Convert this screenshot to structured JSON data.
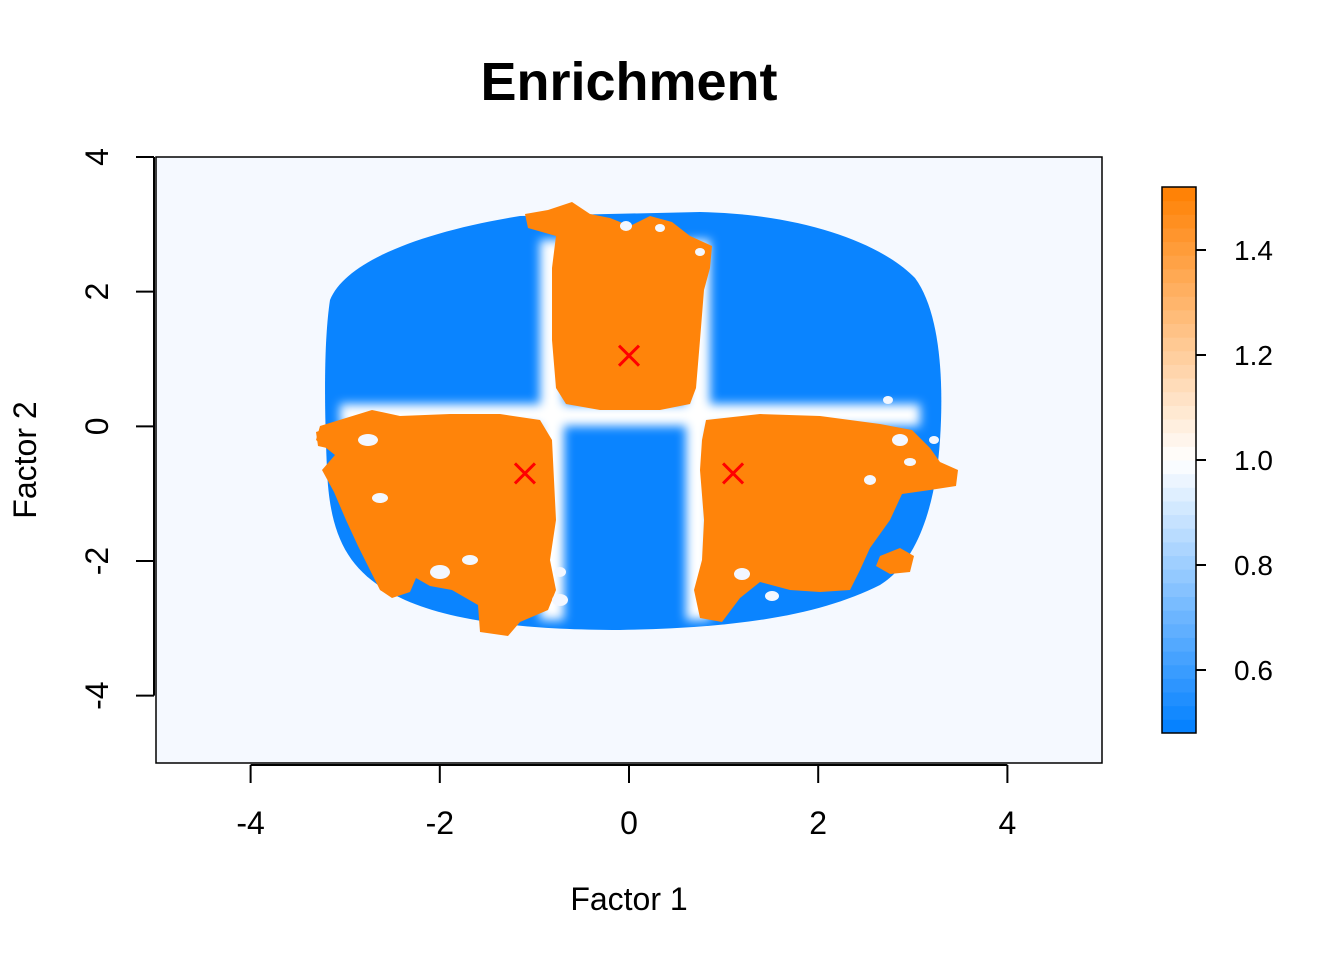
{
  "chart_data": {
    "type": "heatmap",
    "title": "Enrichment",
    "xlabel": "Factor 1",
    "ylabel": "Factor 2",
    "xlim": [
      -5,
      5
    ],
    "ylim": [
      -5,
      4
    ],
    "x_ticks": [
      -4,
      -2,
      0,
      2,
      4
    ],
    "y_ticks": [
      -4,
      -2,
      0,
      2,
      4
    ],
    "x_tick_labels": [
      "-4",
      "-2",
      "0",
      "2",
      "4"
    ],
    "y_tick_labels": [
      "-4",
      "-2",
      "0",
      "2",
      "4"
    ],
    "colorbar": {
      "range": [
        0.48,
        1.52
      ],
      "ticks": [
        0.6,
        0.8,
        1.0,
        1.2,
        1.4
      ],
      "tick_labels": [
        "0.6",
        "0.8",
        "1.0",
        "1.2",
        "1.4"
      ],
      "low_color": "#007FFF",
      "mid_color": "#FFFFFF",
      "high_color": "#FF7F00"
    },
    "background_color": "#F5F9FF",
    "marker_color": "#FF0000",
    "markers": [
      {
        "x": 0.0,
        "y": 1.05,
        "symbol": "x"
      },
      {
        "x": -1.1,
        "y": -0.7,
        "symbol": "x"
      },
      {
        "x": 1.1,
        "y": -0.7,
        "symbol": "x"
      }
    ],
    "regions": [
      {
        "name": "upper-center",
        "value": 1.5
      },
      {
        "name": "lower-left",
        "value": 1.5
      },
      {
        "name": "lower-right",
        "value": 1.5
      },
      {
        "name": "upper-left",
        "value": 0.5
      },
      {
        "name": "upper-right",
        "value": 0.5
      },
      {
        "name": "lower-center",
        "value": 0.5
      }
    ]
  }
}
